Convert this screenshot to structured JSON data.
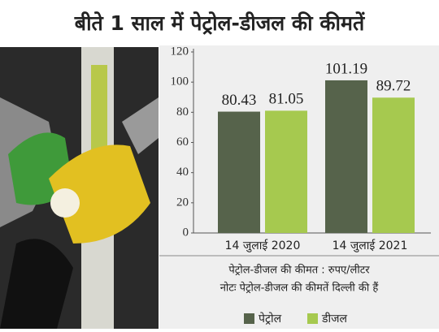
{
  "chart_data": {
    "type": "bar",
    "title": "बीते 1 साल में पेट्रोल-डीजल की कीमतें",
    "categories": [
      "14 जुलाई 2020",
      "14 जुलाई 2021"
    ],
    "series": [
      {
        "name": "पेट्रोल",
        "color": "#56634b",
        "values": [
          80.43,
          101.19
        ]
      },
      {
        "name": "डीजल",
        "color": "#a6c94f",
        "values": [
          81.05,
          89.72
        ]
      }
    ],
    "ylim": [
      0,
      120
    ],
    "yticks": [
      0,
      20,
      40,
      60,
      80,
      100,
      120
    ],
    "notes": [
      "पेट्रोल-डीजल की कीमत : रुपए/लीटर",
      "नोटः पेट्रोल-डीजल की कीमतें दिल्ली की हैं"
    ],
    "legend": "bottom"
  }
}
